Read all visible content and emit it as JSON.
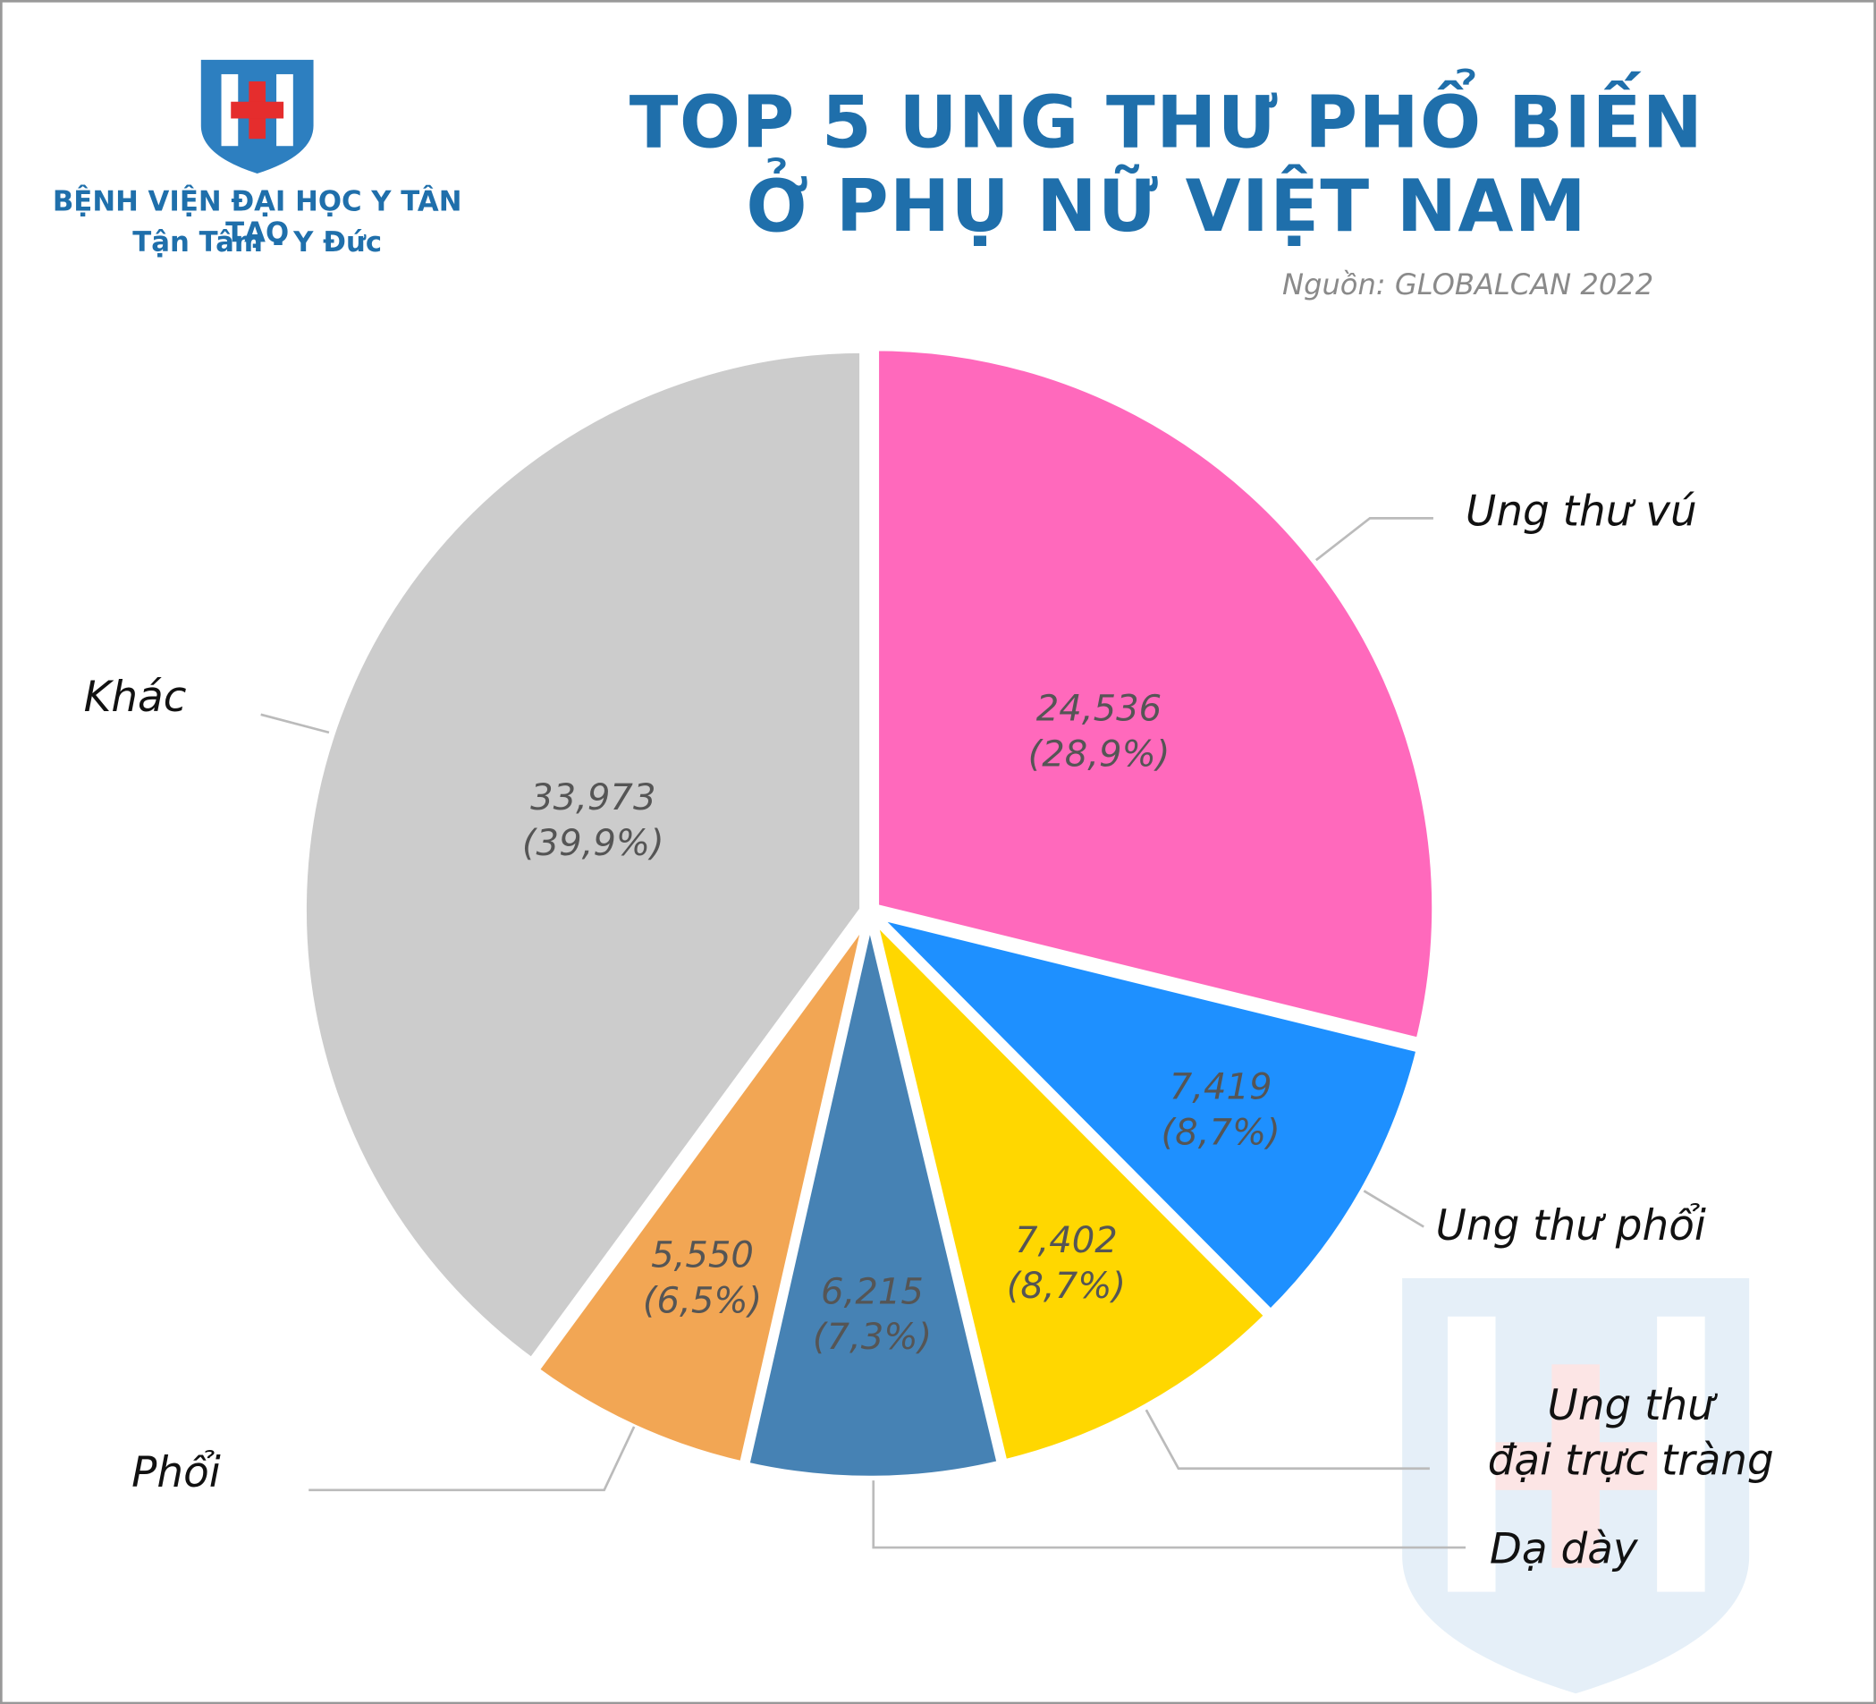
{
  "logo": {
    "name": "BỆNH VIỆN ĐẠI HỌC Y TÂN TẠO",
    "slogan": "Tận Tâm - Y Đức"
  },
  "chart_data": {
    "type": "pie",
    "title": "TOP 5 UNG THƯ PHỔ BIẾN\nỞ PHỤ NỮ VIỆT NAM",
    "source": "Nguồn: GLOBALCAN 2022",
    "categories": [
      "Ung thư vú",
      "Ung thư phổi",
      "Ung thư\nđại trực tràng",
      "Dạ dày",
      "Phổi",
      "Khác"
    ],
    "values": [
      24536,
      7419,
      7402,
      6215,
      5550,
      33973
    ],
    "value_labels": [
      "24,536",
      "7,419",
      "7,402",
      "6,215",
      "5,550",
      "33,973"
    ],
    "percent_labels": [
      "(28,9%)",
      "(8,7%)",
      "(8,7%)",
      "(7,3%)",
      "(6,5%)",
      "(39,9%)"
    ],
    "colors": [
      "#ff69bc",
      "#1e90ff",
      "#ffd700",
      "#4682b4",
      "#f2a654",
      "#cccccc"
    ]
  }
}
